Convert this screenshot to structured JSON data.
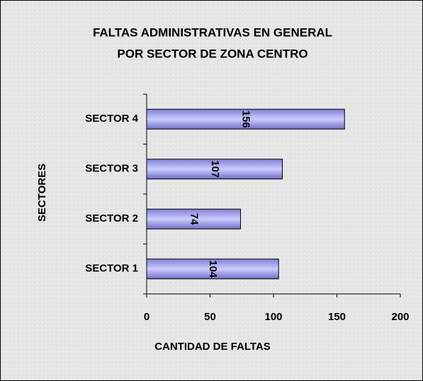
{
  "chart_data": {
    "type": "hbar",
    "title": [
      "FALTAS ADMINISTRATIVAS EN GENERAL",
      "POR SECTOR DE ZONA CENTRO"
    ],
    "x_label": "CANTIDAD DE FALTAS",
    "y_label": "SECTORES",
    "categories": [
      "SECTOR 1",
      "SECTOR 2",
      "SECTOR 3",
      "SECTOR 4"
    ],
    "values": [
      104,
      74,
      107,
      156
    ],
    "color": "#9999ff",
    "xlim": [
      0,
      200
    ],
    "xticks": [
      0,
      50,
      100,
      150,
      200
    ]
  }
}
